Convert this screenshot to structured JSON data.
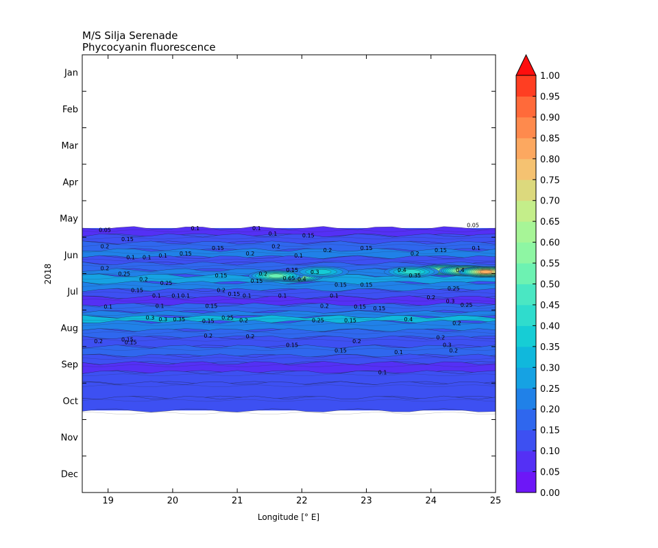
{
  "chart_data": {
    "type": "heatmap",
    "title": [
      "M/S Silja Serenade",
      "Phycocyanin fluorescence"
    ],
    "xlabel": "Longitude [° E]",
    "ylabel": "2018",
    "xlim": [
      18.6,
      25.0
    ],
    "xticks": [
      "19",
      "20",
      "21",
      "22",
      "23",
      "24",
      "25"
    ],
    "xtick_values": [
      19,
      20,
      21,
      22,
      23,
      24,
      25
    ],
    "months": [
      "Jan",
      "Feb",
      "Mar",
      "Apr",
      "May",
      "Jun",
      "Jul",
      "Aug",
      "Sep",
      "Oct",
      "Nov",
      "Dec"
    ],
    "data_months": [
      4.75,
      9.75
    ],
    "colorbar": {
      "levels": [
        "0.00",
        "0.05",
        "0.10",
        "0.15",
        "0.20",
        "0.25",
        "0.30",
        "0.35",
        "0.40",
        "0.45",
        "0.50",
        "0.55",
        "0.60",
        "0.65",
        "0.70",
        "0.75",
        "0.80",
        "0.85",
        "0.90",
        "0.95",
        "1.00"
      ],
      "colors": [
        "#6d17f7",
        "#5430f5",
        "#3d50f2",
        "#2f67ee",
        "#2081e8",
        "#16a2e3",
        "#10b8dc",
        "#16cdd5",
        "#2fdccd",
        "#4ae7c3",
        "#6df2b2",
        "#8ef6a3",
        "#a7f597",
        "#c4ee8a",
        "#dcd97d",
        "#f5c271",
        "#fca860",
        "#fe8a4d",
        "#ff6a3a",
        "#ff3e22",
        "#fe0e0e"
      ],
      "extend": "max",
      "cmap": "rainbow"
    },
    "bands": [
      {
        "t": 4.75,
        "v": 0.07
      },
      {
        "t": 4.95,
        "v": 0.12
      },
      {
        "t": 5.15,
        "v": 0.16
      },
      {
        "t": 5.35,
        "v": 0.2
      },
      {
        "t": 5.55,
        "v": 0.12
      },
      {
        "t": 5.72,
        "v": 0.18
      },
      {
        "t": 5.9,
        "v": 0.24
      },
      {
        "t": 6.05,
        "v": 0.3
      },
      {
        "t": 6.25,
        "v": 0.2
      },
      {
        "t": 6.45,
        "v": 0.13
      },
      {
        "t": 6.65,
        "v": 0.09
      },
      {
        "t": 6.85,
        "v": 0.16
      },
      {
        "t": 7.05,
        "v": 0.2
      },
      {
        "t": 7.18,
        "v": 0.34
      },
      {
        "t": 7.32,
        "v": 0.2
      },
      {
        "t": 7.55,
        "v": 0.18
      },
      {
        "t": 7.75,
        "v": 0.14
      },
      {
        "t": 8.0,
        "v": 0.16
      },
      {
        "t": 8.25,
        "v": 0.14
      },
      {
        "t": 8.45,
        "v": 0.06
      },
      {
        "t": 8.7,
        "v": 0.12
      },
      {
        "t": 9.0,
        "v": 0.12
      },
      {
        "t": 9.4,
        "v": 0.12
      },
      {
        "t": 9.75,
        "v": 0.12
      }
    ],
    "hotspots": [
      {
        "lon": 21.9,
        "t": 6.08,
        "v": 0.62
      },
      {
        "lon": 21.6,
        "t": 6.06,
        "v": 0.48
      },
      {
        "lon": 24.2,
        "t": 5.9,
        "v": 0.55
      },
      {
        "lon": 24.55,
        "t": 5.92,
        "v": 0.7
      },
      {
        "lon": 24.85,
        "t": 5.95,
        "v": 0.78
      },
      {
        "lon": 23.7,
        "t": 5.95,
        "v": 0.42
      },
      {
        "lon": 22.3,
        "t": 5.95,
        "v": 0.36
      }
    ],
    "contour_labels": [
      {
        "text": "0.05",
        "lon": 18.95,
        "t": 4.8
      },
      {
        "text": "0.1",
        "lon": 20.35,
        "t": 4.75
      },
      {
        "text": "0.1",
        "lon": 21.3,
        "t": 4.75
      },
      {
        "text": "0.1",
        "lon": 21.55,
        "t": 4.9
      },
      {
        "text": "0.15",
        "lon": 22.1,
        "t": 4.95
      },
      {
        "text": "0.05",
        "lon": 24.65,
        "t": 4.67
      },
      {
        "text": "0.15",
        "lon": 19.3,
        "t": 5.05
      },
      {
        "text": "0.2",
        "lon": 18.95,
        "t": 5.25
      },
      {
        "text": "0.15",
        "lon": 20.7,
        "t": 5.3
      },
      {
        "text": "0.2",
        "lon": 21.2,
        "t": 5.45
      },
      {
        "text": "0.2",
        "lon": 21.6,
        "t": 5.25
      },
      {
        "text": "0.15",
        "lon": 23.0,
        "t": 5.3
      },
      {
        "text": "0.2",
        "lon": 22.4,
        "t": 5.35
      },
      {
        "text": "0.1",
        "lon": 21.95,
        "t": 5.5
      },
      {
        "text": "0.2",
        "lon": 23.75,
        "t": 5.45
      },
      {
        "text": "0.15",
        "lon": 24.15,
        "t": 5.35
      },
      {
        "text": "0.1",
        "lon": 24.7,
        "t": 5.3
      },
      {
        "text": "0.1",
        "lon": 19.35,
        "t": 5.55
      },
      {
        "text": "0.1",
        "lon": 19.6,
        "t": 5.55
      },
      {
        "text": "0.1",
        "lon": 19.85,
        "t": 5.5
      },
      {
        "text": "0.15",
        "lon": 20.2,
        "t": 5.45
      },
      {
        "text": "0.2",
        "lon": 18.95,
        "t": 5.85
      },
      {
        "text": "0.25",
        "lon": 19.25,
        "t": 6.0
      },
      {
        "text": "0.15",
        "lon": 20.75,
        "t": 6.05
      },
      {
        "text": "0.2",
        "lon": 21.4,
        "t": 6.0
      },
      {
        "text": "0.15",
        "lon": 21.85,
        "t": 5.9
      },
      {
        "text": "0.3",
        "lon": 22.2,
        "t": 5.95
      },
      {
        "text": "0.65",
        "lon": 21.8,
        "t": 6.12
      },
      {
        "text": "0.4",
        "lon": 22.0,
        "t": 6.15
      },
      {
        "text": "0.15",
        "lon": 21.3,
        "t": 6.2
      },
      {
        "text": "0.2",
        "lon": 19.55,
        "t": 6.15
      },
      {
        "text": "0.25",
        "lon": 19.9,
        "t": 6.25
      },
      {
        "text": "0.15",
        "lon": 19.45,
        "t": 6.45
      },
      {
        "text": "0.15",
        "lon": 22.6,
        "t": 6.3
      },
      {
        "text": "0.15",
        "lon": 23.0,
        "t": 6.3
      },
      {
        "text": "0.4",
        "lon": 23.55,
        "t": 5.9
      },
      {
        "text": "0.35",
        "lon": 23.75,
        "t": 6.05
      },
      {
        "text": "0.4",
        "lon": 24.45,
        "t": 5.9
      },
      {
        "text": "0.25",
        "lon": 24.35,
        "t": 6.4
      },
      {
        "text": "0.2",
        "lon": 20.75,
        "t": 6.45
      },
      {
        "text": "0.15",
        "lon": 20.95,
        "t": 6.55
      },
      {
        "text": "0.1",
        "lon": 19.75,
        "t": 6.6
      },
      {
        "text": "0.1",
        "lon": 20.05,
        "t": 6.6
      },
      {
        "text": "0.1",
        "lon": 20.2,
        "t": 6.6
      },
      {
        "text": "0.1",
        "lon": 21.15,
        "t": 6.6
      },
      {
        "text": "0.1",
        "lon": 21.7,
        "t": 6.6
      },
      {
        "text": "0.1",
        "lon": 22.5,
        "t": 6.6
      },
      {
        "text": "0.2",
        "lon": 24.0,
        "t": 6.65
      },
      {
        "text": "0.3",
        "lon": 24.3,
        "t": 6.75
      },
      {
        "text": "0.25",
        "lon": 24.55,
        "t": 6.85
      },
      {
        "text": "0.1",
        "lon": 19.0,
        "t": 6.9
      },
      {
        "text": "0.1",
        "lon": 19.8,
        "t": 6.88
      },
      {
        "text": "0.15",
        "lon": 20.6,
        "t": 6.88
      },
      {
        "text": "0.2",
        "lon": 22.35,
        "t": 6.88
      },
      {
        "text": "0.15",
        "lon": 22.9,
        "t": 6.9
      },
      {
        "text": "0.15",
        "lon": 23.2,
        "t": 6.95
      },
      {
        "text": "0.3",
        "lon": 19.65,
        "t": 7.2
      },
      {
        "text": "0.3",
        "lon": 19.85,
        "t": 7.25
      },
      {
        "text": "0.35",
        "lon": 20.1,
        "t": 7.25
      },
      {
        "text": "0.25",
        "lon": 20.85,
        "t": 7.2
      },
      {
        "text": "0.2",
        "lon": 21.1,
        "t": 7.28
      },
      {
        "text": "0.15",
        "lon": 20.55,
        "t": 7.3
      },
      {
        "text": "0.25",
        "lon": 22.25,
        "t": 7.28
      },
      {
        "text": "0.15",
        "lon": 22.75,
        "t": 7.28
      },
      {
        "text": "0.4",
        "lon": 23.65,
        "t": 7.25
      },
      {
        "text": "0.2",
        "lon": 24.4,
        "t": 7.35
      },
      {
        "text": "0.15",
        "lon": 19.3,
        "t": 7.8
      },
      {
        "text": "0.15",
        "lon": 19.35,
        "t": 7.88
      },
      {
        "text": "0.2",
        "lon": 18.85,
        "t": 7.85
      },
      {
        "text": "0.2",
        "lon": 20.55,
        "t": 7.7
      },
      {
        "text": "0.2",
        "lon": 21.2,
        "t": 7.72
      },
      {
        "text": "0.15",
        "lon": 21.85,
        "t": 7.95
      },
      {
        "text": "0.2",
        "lon": 22.85,
        "t": 7.85
      },
      {
        "text": "0.15",
        "lon": 22.6,
        "t": 8.1
      },
      {
        "text": "0.2",
        "lon": 24.15,
        "t": 7.75
      },
      {
        "text": "0.3",
        "lon": 24.25,
        "t": 7.95
      },
      {
        "text": "0.2",
        "lon": 24.35,
        "t": 8.1
      },
      {
        "text": "0.1",
        "lon": 23.5,
        "t": 8.15
      },
      {
        "text": "0.1",
        "lon": 23.25,
        "t": 8.7
      }
    ]
  }
}
